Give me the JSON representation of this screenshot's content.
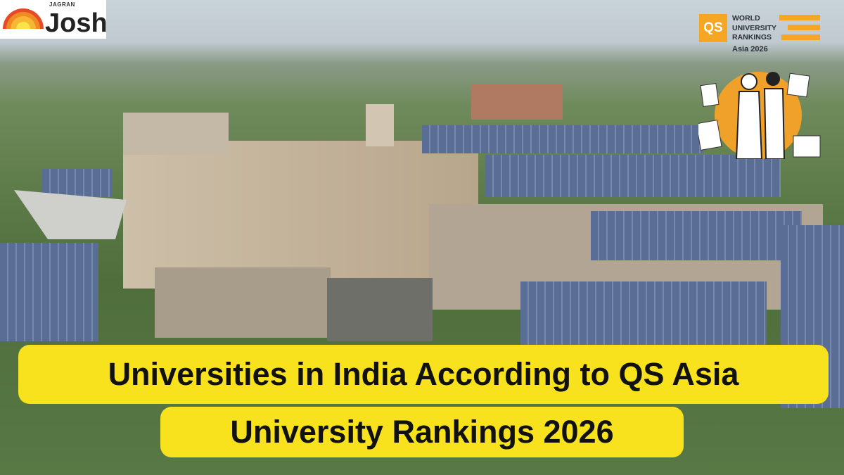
{
  "branding": {
    "publisher_top": "JAGRAN",
    "publisher_main": "Josh",
    "qs_logo_mark": "QS",
    "qs_logo_lines": [
      "WORLD",
      "UNIVERSITY",
      "RANKINGS"
    ],
    "qs_edition": "Asia 2026",
    "qs_color": "#f5a623"
  },
  "headline": {
    "line1": "Universities in India According to QS Asia",
    "line2": "University Rankings 2026",
    "highlight_color": "#f8e21d"
  }
}
